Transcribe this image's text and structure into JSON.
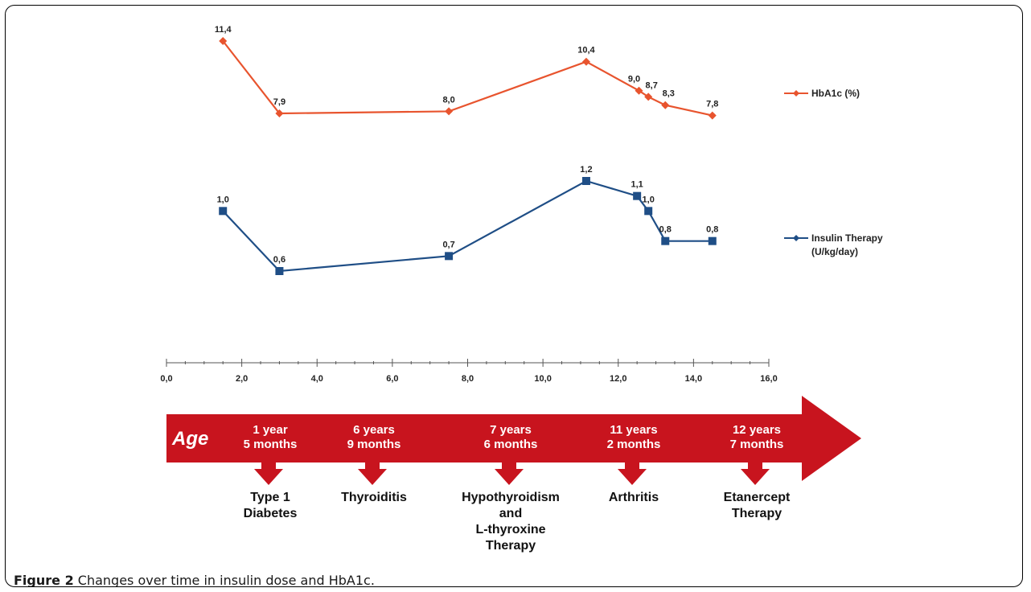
{
  "figure_label": "Figure 2",
  "figure_caption": "Changes over time in insulin dose and HbA1c.",
  "colors": {
    "hba1c": "#e8542e",
    "insulin": "#1f4e86",
    "arrow": "#c8141e",
    "axis": "#555555"
  },
  "chart_data": {
    "type": "line",
    "x_axis": {
      "range": [
        0,
        16
      ],
      "ticks": [
        "0,0",
        "2,0",
        "4,0",
        "6,0",
        "8,0",
        "10,0",
        "12,0",
        "14,0",
        "16,0"
      ]
    },
    "series": [
      {
        "name": "HbA1c (%)",
        "marker": "diamond",
        "points": [
          {
            "x": 1.5,
            "y": 11.4,
            "label": "11,4"
          },
          {
            "x": 3.0,
            "y": 7.9,
            "label": "7,9"
          },
          {
            "x": 7.5,
            "y": 8.0,
            "label": "8,0"
          },
          {
            "x": 11.15,
            "y": 10.4,
            "label": "10,4"
          },
          {
            "x": 12.55,
            "y": 9.0,
            "label": "9,0"
          },
          {
            "x": 12.8,
            "y": 8.7,
            "label": "8,7"
          },
          {
            "x": 13.25,
            "y": 8.3,
            "label": "8,3"
          },
          {
            "x": 14.5,
            "y": 7.8,
            "label": "7,8"
          }
        ]
      },
      {
        "name": "Insulin Therapy (U/kg/day)",
        "name_lines": [
          "Insulin Therapy",
          "(U/kg/day)"
        ],
        "marker": "square",
        "points": [
          {
            "x": 1.5,
            "y": 1.0,
            "label": "1,0"
          },
          {
            "x": 3.0,
            "y": 0.6,
            "label": "0,6"
          },
          {
            "x": 7.5,
            "y": 0.7,
            "label": "0,7"
          },
          {
            "x": 11.15,
            "y": 1.2,
            "label": "1,2"
          },
          {
            "x": 12.5,
            "y": 1.1,
            "label": "1,1"
          },
          {
            "x": 12.8,
            "y": 1.0,
            "label": "1,0"
          },
          {
            "x": 13.25,
            "y": 0.8,
            "label": "0,8"
          },
          {
            "x": 14.5,
            "y": 0.8,
            "label": "0,8"
          }
        ]
      }
    ],
    "legend_position": "right",
    "timeline": {
      "title": "Age",
      "events": [
        {
          "age": [
            "1 year",
            "5 months"
          ],
          "event": [
            "Type 1",
            "Diabetes"
          ]
        },
        {
          "age": [
            "6 years",
            "9 months"
          ],
          "event": [
            "Thyroiditis"
          ]
        },
        {
          "age": [
            "7 years",
            "6 months"
          ],
          "event": [
            "Hypothyroidism",
            "and",
            "L-thyroxine",
            "Therapy"
          ]
        },
        {
          "age": [
            "11 years",
            "2 months"
          ],
          "event": [
            "Arthritis"
          ]
        },
        {
          "age": [
            "12 years",
            "7 months"
          ],
          "event": [
            "Etanercept",
            "Therapy"
          ]
        }
      ]
    }
  }
}
